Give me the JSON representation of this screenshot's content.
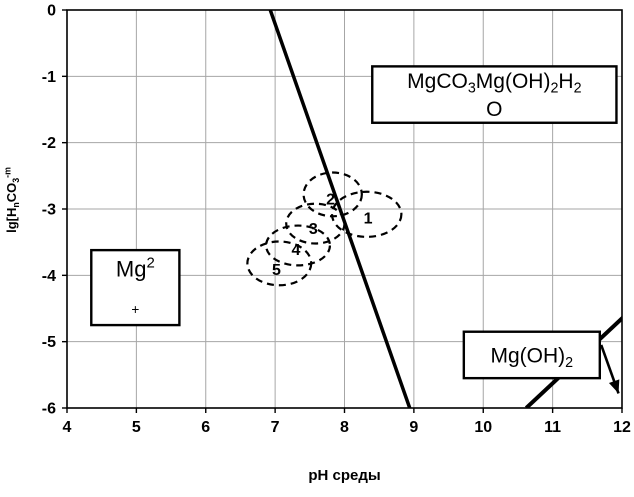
{
  "chart_data": {
    "type": "line",
    "title": "",
    "xlabel": "pH среды",
    "ylabel": "lg[HnCO3-m]",
    "ylabel_segments": [
      [
        "lg[H",
        ""
      ],
      [
        "n",
        "sub"
      ],
      [
        "CO",
        ""
      ],
      [
        "3",
        "sub"
      ],
      [
        "-m",
        "sup"
      ]
    ],
    "xlim": [
      4,
      12
    ],
    "ylim": [
      -6,
      0
    ],
    "x_ticks": [
      4,
      5,
      6,
      7,
      8,
      9,
      10,
      11,
      12
    ],
    "y_ticks": [
      0,
      -1,
      -2,
      -3,
      -4,
      -5,
      -6
    ],
    "grid": true,
    "grid_color": "#a6a6a6",
    "line_color": "#000000",
    "boundary_lines": [
      {
        "name": "main-boundary-line",
        "points": [
          [
            6.93,
            0
          ],
          [
            8.94,
            -6
          ]
        ],
        "width": 3.5
      },
      {
        "name": "secondary-boundary-line",
        "points": [
          [
            10.62,
            -6
          ],
          [
            12.05,
            -4.6
          ]
        ],
        "width": 4
      }
    ],
    "arrow": {
      "from": [
        11.7,
        -5.05
      ],
      "to": [
        11.95,
        -5.78
      ]
    },
    "sample_ellipses": [
      {
        "label": "1",
        "cx": 8.32,
        "cy": -3.08,
        "rx": 0.5,
        "ry": 0.34
      },
      {
        "label": "2",
        "cx": 7.83,
        "cy": -2.78,
        "rx": 0.42,
        "ry": 0.33
      },
      {
        "label": "3",
        "cx": 7.58,
        "cy": -3.22,
        "rx": 0.42,
        "ry": 0.3
      },
      {
        "label": "4",
        "cx": 7.33,
        "cy": -3.55,
        "rx": 0.46,
        "ry": 0.3
      },
      {
        "label": "5",
        "cx": 7.06,
        "cy": -3.82,
        "rx": 0.46,
        "ry": 0.33
      }
    ],
    "ellipse_labels": [
      {
        "text": "2",
        "x": 7.8,
        "y": -2.86
      },
      {
        "text": "1",
        "x": 8.34,
        "y": -3.14
      },
      {
        "text": "3",
        "x": 7.55,
        "y": -3.3
      },
      {
        "text": "4",
        "x": 7.3,
        "y": -3.62
      },
      {
        "text": "5",
        "x": 7.02,
        "y": -3.92
      }
    ],
    "region_boxes": [
      {
        "name": "region-mgco3-mgoh2-h2o",
        "label_plain": "MgCO3Mg(OH)2H2O",
        "x1": 8.4,
        "y1": -0.85,
        "x2": 11.92,
        "y2": -1.7,
        "font": 21,
        "lines": [
          [
            [
              "MgCO",
              ""
            ],
            [
              "3",
              "sub"
            ],
            [
              "Mg(OH)",
              ""
            ],
            [
              "2",
              "sub"
            ],
            [
              "H",
              ""
            ],
            [
              "2",
              "sub"
            ]
          ],
          [
            [
              "O",
              ""
            ]
          ]
        ]
      },
      {
        "name": "region-mg2plus",
        "label_plain": "Mg2+",
        "x1": 4.35,
        "y1": -3.62,
        "x2": 5.62,
        "y2": -4.75,
        "font": 22,
        "lines": [
          [
            [
              "Mg",
              ""
            ],
            [
              "2",
              "sup"
            ]
          ],
          [
            [
              "+",
              "small"
            ]
          ]
        ]
      },
      {
        "name": "region-mgoh2",
        "label_plain": "Mg(OH)2",
        "x1": 9.72,
        "y1": -4.85,
        "x2": 11.68,
        "y2": -5.55,
        "font": 21,
        "lines": [
          [
            [
              "Mg(OH)",
              ""
            ],
            [
              "2",
              "sub"
            ]
          ]
        ]
      }
    ]
  }
}
